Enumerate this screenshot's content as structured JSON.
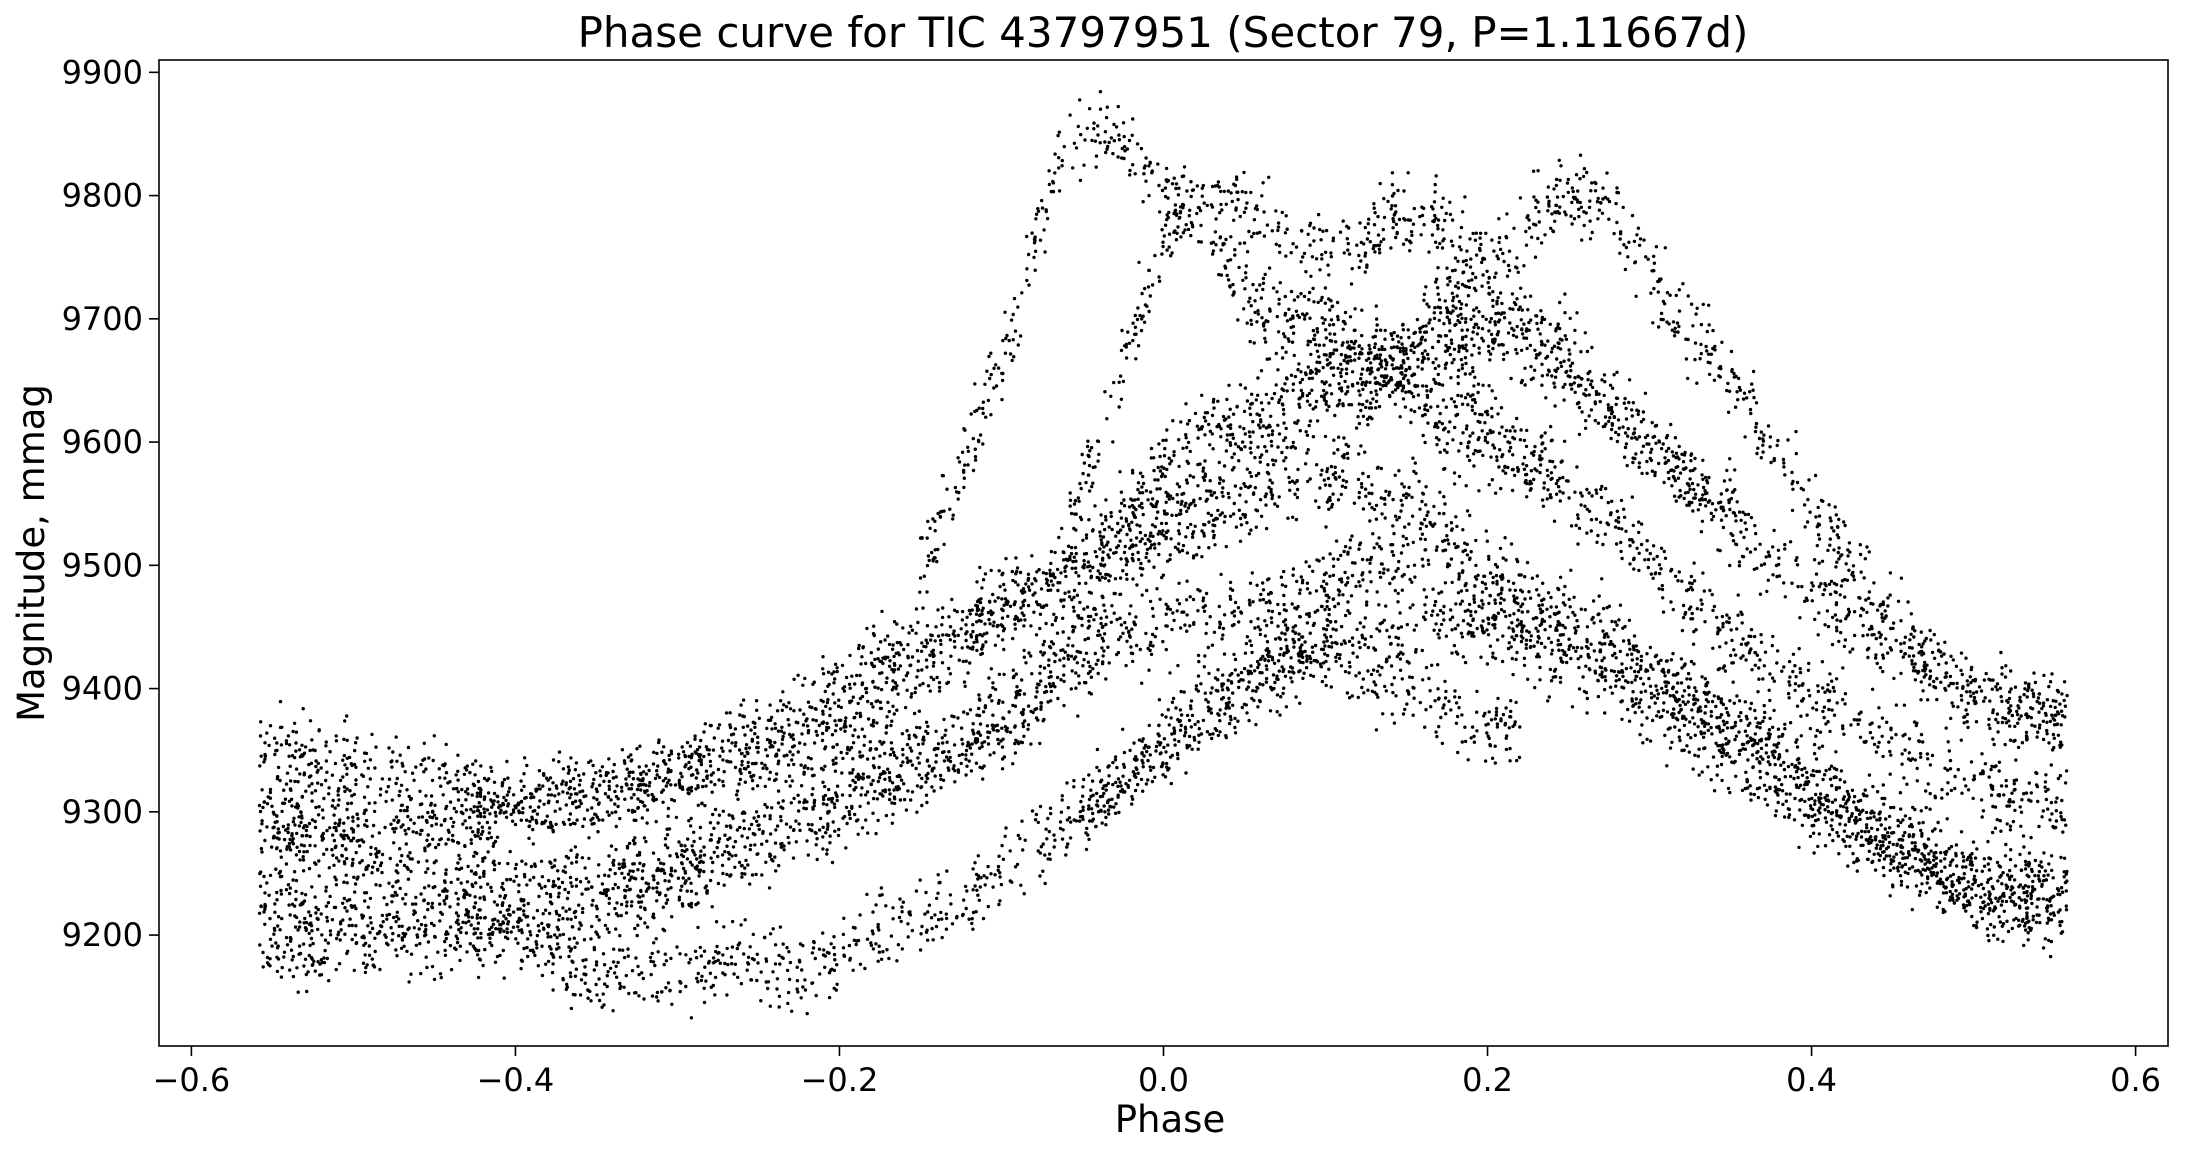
{
  "chart_data": {
    "type": "scatter",
    "title": "Phase curve for TIC 43797951 (Sector 79, P=1.11667d)",
    "xlabel": "Phase",
    "ylabel": "Magnitude, mmag",
    "xlim": [
      -0.62,
      0.62
    ],
    "ylim": [
      9110,
      9910
    ],
    "xticks": [
      -0.6,
      -0.4,
      -0.2,
      0.0,
      0.2,
      0.4,
      0.6
    ],
    "xtick_labels": [
      "−0.6",
      "−0.4",
      "−0.2",
      "0.0",
      "0.2",
      "0.4",
      "0.6"
    ],
    "yticks": [
      9200,
      9300,
      9400,
      9500,
      9600,
      9700,
      9800,
      9900
    ],
    "ytick_labels": [
      "9200",
      "9300",
      "9400",
      "9500",
      "9600",
      "9700",
      "9800",
      "9900"
    ],
    "grid": false,
    "marker_color": "#000000",
    "phase_range": [
      -0.558,
      0.558
    ],
    "series": [
      {
        "points": [
          [
            -0.558,
            9205
          ],
          [
            -0.55,
            9193
          ],
          [
            -0.53,
            9185
          ],
          [
            -0.5,
            9192
          ],
          [
            -0.45,
            9200
          ],
          [
            -0.4,
            9200
          ],
          [
            -0.38,
            9185
          ],
          [
            -0.35,
            9165
          ],
          [
            -0.3,
            9170
          ],
          [
            -0.25,
            9178
          ],
          [
            -0.22,
            9170
          ],
          [
            -0.2,
            9185
          ],
          [
            -0.18,
            9200
          ],
          [
            -0.15,
            9210
          ],
          [
            -0.12,
            9230
          ],
          [
            -0.1,
            9250
          ],
          [
            -0.08,
            9270
          ],
          [
            -0.06,
            9290
          ],
          [
            -0.04,
            9310
          ],
          [
            -0.02,
            9335
          ],
          [
            0.0,
            9355
          ],
          [
            0.02,
            9385
          ],
          [
            0.05,
            9410
          ],
          [
            0.08,
            9430
          ],
          [
            0.1,
            9445
          ],
          [
            0.13,
            9440
          ],
          [
            0.15,
            9445
          ],
          [
            0.18,
            9455
          ],
          [
            0.2,
            9450
          ],
          [
            0.22,
            9435
          ],
          [
            0.25,
            9420
          ],
          [
            0.28,
            9405
          ],
          [
            0.3,
            9385
          ],
          [
            0.33,
            9360
          ],
          [
            0.35,
            9340
          ],
          [
            0.38,
            9325
          ],
          [
            0.4,
            9305
          ],
          [
            0.43,
            9285
          ],
          [
            0.45,
            9265
          ],
          [
            0.48,
            9245
          ],
          [
            0.5,
            9225
          ],
          [
            0.52,
            9215
          ],
          [
            0.55,
            9210
          ],
          [
            0.558,
            9225
          ]
        ]
      },
      {
        "points": [
          [
            -0.558,
            9228
          ],
          [
            -0.53,
            9225
          ],
          [
            -0.5,
            9220
          ],
          [
            -0.45,
            9222
          ],
          [
            -0.4,
            9215
          ],
          [
            -0.37,
            9210
          ],
          [
            -0.35,
            9220
          ],
          [
            -0.3,
            9240
          ],
          [
            -0.25,
            9270
          ],
          [
            -0.2,
            9295
          ],
          [
            -0.15,
            9330
          ],
          [
            -0.1,
            9365
          ],
          [
            -0.08,
            9385
          ],
          [
            -0.05,
            9420
          ],
          [
            -0.02,
            9440
          ],
          [
            0.0,
            9450
          ],
          [
            0.02,
            9460
          ],
          [
            0.05,
            9455
          ],
          [
            0.08,
            9470
          ],
          [
            0.1,
            9485
          ],
          [
            0.12,
            9500
          ],
          [
            0.15,
            9510
          ],
          [
            0.18,
            9490
          ],
          [
            0.2,
            9470
          ],
          [
            0.22,
            9455
          ],
          [
            0.25,
            9440
          ],
          [
            0.28,
            9425
          ],
          [
            0.3,
            9410
          ],
          [
            0.33,
            9395
          ],
          [
            0.35,
            9375
          ],
          [
            0.38,
            9355
          ],
          [
            0.4,
            9330
          ],
          [
            0.43,
            9305
          ],
          [
            0.45,
            9290
          ],
          [
            0.48,
            9270
          ],
          [
            0.5,
            9255
          ],
          [
            0.53,
            9240
          ],
          [
            0.558,
            9232
          ]
        ]
      },
      {
        "points": [
          [
            -0.558,
            9290
          ],
          [
            -0.53,
            9280
          ],
          [
            -0.5,
            9270
          ],
          [
            -0.45,
            9260
          ],
          [
            -0.4,
            9245
          ],
          [
            -0.35,
            9250
          ],
          [
            -0.3,
            9265
          ],
          [
            -0.25,
            9290
          ],
          [
            -0.2,
            9325
          ],
          [
            -0.15,
            9355
          ],
          [
            -0.12,
            9370
          ],
          [
            -0.1,
            9385
          ],
          [
            -0.08,
            9410
          ],
          [
            -0.06,
            9440
          ],
          [
            -0.04,
            9470
          ],
          [
            -0.02,
            9495
          ],
          [
            0.0,
            9520
          ],
          [
            0.02,
            9535
          ],
          [
            0.04,
            9545
          ],
          [
            0.06,
            9555
          ],
          [
            0.08,
            9565
          ],
          [
            0.1,
            9575
          ],
          [
            0.12,
            9570
          ],
          [
            0.14,
            9560
          ],
          [
            0.16,
            9545
          ],
          [
            0.18,
            9525
          ],
          [
            0.2,
            9500
          ],
          [
            0.22,
            9480
          ],
          [
            0.25,
            9460
          ],
          [
            0.28,
            9440
          ],
          [
            0.3,
            9420
          ],
          [
            0.33,
            9390
          ],
          [
            0.35,
            9365
          ],
          [
            0.38,
            9340
          ],
          [
            0.4,
            9310
          ],
          [
            0.43,
            9290
          ],
          [
            0.45,
            9270
          ],
          [
            0.48,
            9255
          ],
          [
            0.5,
            9245
          ],
          [
            0.53,
            9240
          ],
          [
            0.558,
            9235
          ]
        ]
      },
      {
        "points": [
          [
            -0.558,
            9300
          ],
          [
            -0.53,
            9298
          ],
          [
            -0.5,
            9295
          ],
          [
            -0.45,
            9290
          ],
          [
            -0.4,
            9300
          ],
          [
            -0.35,
            9315
          ],
          [
            -0.3,
            9330
          ],
          [
            -0.25,
            9340
          ],
          [
            -0.2,
            9370
          ],
          [
            -0.15,
            9410
          ],
          [
            -0.12,
            9440
          ],
          [
            -0.1,
            9460
          ],
          [
            -0.08,
            9480
          ],
          [
            -0.05,
            9505
          ],
          [
            -0.03,
            9540
          ],
          [
            0.0,
            9580
          ],
          [
            0.02,
            9610
          ],
          [
            0.05,
            9625
          ],
          [
            0.08,
            9650
          ],
          [
            0.1,
            9665
          ],
          [
            0.13,
            9670
          ],
          [
            0.15,
            9665
          ],
          [
            0.18,
            9650
          ],
          [
            0.2,
            9620
          ],
          [
            0.22,
            9590
          ],
          [
            0.25,
            9560
          ],
          [
            0.28,
            9530
          ],
          [
            0.3,
            9505
          ],
          [
            0.33,
            9470
          ],
          [
            0.35,
            9440
          ],
          [
            0.38,
            9415
          ],
          [
            0.4,
            9395
          ],
          [
            0.43,
            9375
          ],
          [
            0.45,
            9360
          ],
          [
            0.48,
            9340
          ],
          [
            0.5,
            9325
          ],
          [
            0.53,
            9310
          ],
          [
            0.558,
            9305
          ]
        ]
      },
      {
        "points": [
          [
            -0.558,
            9350
          ],
          [
            -0.53,
            9345
          ],
          [
            -0.5,
            9335
          ],
          [
            -0.45,
            9325
          ],
          [
            -0.4,
            9310
          ],
          [
            -0.35,
            9315
          ],
          [
            -0.3,
            9335
          ],
          [
            -0.25,
            9360
          ],
          [
            -0.2,
            9400
          ],
          [
            -0.15,
            9440
          ],
          [
            -0.12,
            9460
          ],
          [
            -0.1,
            9470
          ],
          [
            -0.08,
            9480
          ],
          [
            -0.05,
            9500
          ],
          [
            -0.03,
            9520
          ],
          [
            0.0,
            9540
          ],
          [
            0.02,
            9560
          ],
          [
            0.04,
            9580
          ],
          [
            0.06,
            9600
          ],
          [
            0.08,
            9620
          ],
          [
            0.1,
            9640
          ],
          [
            0.12,
            9655
          ],
          [
            0.15,
            9660
          ],
          [
            0.18,
            9670
          ],
          [
            0.2,
            9690
          ],
          [
            0.22,
            9700
          ],
          [
            0.24,
            9690
          ],
          [
            0.26,
            9660
          ],
          [
            0.28,
            9630
          ],
          [
            0.3,
            9600
          ],
          [
            0.33,
            9560
          ],
          [
            0.35,
            9530
          ],
          [
            0.38,
            9500
          ],
          [
            0.4,
            9480
          ],
          [
            0.43,
            9455
          ],
          [
            0.45,
            9435
          ],
          [
            0.48,
            9415
          ],
          [
            0.5,
            9400
          ],
          [
            0.53,
            9385
          ],
          [
            0.558,
            9375
          ]
        ]
      },
      {
        "points": [
          [
            -0.15,
            9500
          ],
          [
            -0.13,
            9560
          ],
          [
            -0.11,
            9630
          ],
          [
            -0.09,
            9700
          ],
          [
            -0.08,
            9760
          ],
          [
            -0.07,
            9800
          ],
          [
            -0.06,
            9830
          ],
          [
            -0.05,
            9850
          ],
          [
            -0.04,
            9855
          ],
          [
            -0.03,
            9845
          ],
          [
            -0.02,
            9835
          ],
          [
            -0.01,
            9820
          ],
          [
            0.0,
            9805
          ],
          [
            0.02,
            9790
          ],
          [
            0.04,
            9790
          ],
          [
            0.06,
            9785
          ],
          [
            0.08,
            9770
          ],
          [
            0.1,
            9755
          ],
          [
            0.12,
            9760
          ],
          [
            0.14,
            9780
          ],
          [
            0.16,
            9780
          ],
          [
            0.18,
            9765
          ],
          [
            0.2,
            9750
          ]
        ]
      },
      {
        "points": [
          [
            -0.06,
            9540
          ],
          [
            -0.04,
            9600
          ],
          [
            -0.02,
            9680
          ],
          [
            0.0,
            9760
          ],
          [
            0.01,
            9790
          ],
          [
            0.02,
            9790
          ],
          [
            0.03,
            9760
          ],
          [
            0.04,
            9735
          ],
          [
            0.06,
            9710
          ],
          [
            0.08,
            9700
          ],
          [
            0.1,
            9700
          ],
          [
            0.12,
            9690
          ],
          [
            0.14,
            9660
          ],
          [
            0.16,
            9620
          ],
          [
            0.18,
            9600
          ],
          [
            0.2,
            9590
          ],
          [
            0.22,
            9590
          ],
          [
            0.24,
            9585
          ]
        ]
      },
      {
        "points": [
          [
            0.16,
            9700
          ],
          [
            0.18,
            9720
          ],
          [
            0.2,
            9740
          ],
          [
            0.22,
            9770
          ],
          [
            0.24,
            9790
          ],
          [
            0.26,
            9800
          ],
          [
            0.27,
            9795
          ],
          [
            0.28,
            9780
          ],
          [
            0.29,
            9760
          ],
          [
            0.3,
            9740
          ],
          [
            0.31,
            9720
          ],
          [
            0.32,
            9700
          ],
          [
            0.34,
            9670
          ],
          [
            0.36,
            9630
          ],
          [
            0.38,
            9590
          ],
          [
            0.4,
            9550
          ],
          [
            0.42,
            9510
          ],
          [
            0.44,
            9470
          ],
          [
            0.46,
            9440
          ],
          [
            0.48,
            9410
          ],
          [
            0.5,
            9395
          ],
          [
            0.52,
            9385
          ],
          [
            0.55,
            9380
          ],
          [
            0.558,
            9380
          ]
        ]
      },
      {
        "points": [
          [
            -0.05,
            9300
          ],
          [
            -0.03,
            9320
          ],
          [
            -0.01,
            9340
          ],
          [
            0.01,
            9360
          ],
          [
            0.03,
            9380
          ],
          [
            0.05,
            9400
          ],
          [
            0.08,
            9420
          ],
          [
            0.1,
            9430
          ],
          [
            0.12,
            9410
          ],
          [
            0.14,
            9400
          ],
          [
            0.16,
            9395
          ],
          [
            0.18,
            9380
          ],
          [
            0.2,
            9370
          ],
          [
            0.22,
            9360
          ]
        ]
      },
      {
        "points": [
          [
            0.1,
            9560
          ],
          [
            0.12,
            9620
          ],
          [
            0.14,
            9660
          ],
          [
            0.16,
            9680
          ],
          [
            0.18,
            9700
          ],
          [
            0.2,
            9700
          ],
          [
            0.22,
            9680
          ],
          [
            0.24,
            9660
          ],
          [
            0.26,
            9640
          ],
          [
            0.28,
            9620
          ],
          [
            0.3,
            9600
          ],
          [
            0.32,
            9580
          ],
          [
            0.34,
            9560
          ],
          [
            0.36,
            9540
          ]
        ]
      }
    ]
  }
}
